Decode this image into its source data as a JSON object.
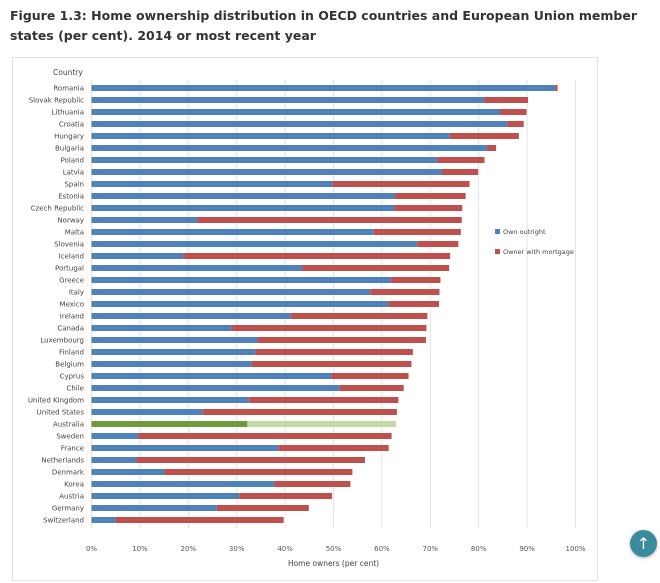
{
  "page": {
    "title": "Figure 1.3: Home ownership distribution in OECD countries and European Union member states (per cent). 2014 or most recent year",
    "scroll_top_icon": "arrow-up-icon"
  },
  "chart_data": {
    "type": "bar",
    "orientation": "horizontal",
    "stacked": true,
    "title": "Figure 1.3: Home ownership distribution in OECD countries and European Union member states (per cent). 2014 or most recent year",
    "ylabel": "Country",
    "xlabel": "Home owners (per cent)",
    "xlim": [
      0,
      100
    ],
    "xticks": [
      "0%",
      "10%",
      "20%",
      "30%",
      "40%",
      "50%",
      "60%",
      "70%",
      "80%",
      "90%",
      "100%"
    ],
    "grid": true,
    "legend_position": "right",
    "categories": [
      "Romania",
      "Slovak Republic",
      "Lithuania",
      "Croatia",
      "Hungary",
      "Bulgaria",
      "Poland",
      "Latvia",
      "Spain",
      "Estonia",
      "Czech Republic",
      "Norway",
      "Malta",
      "Slovenia",
      "Iceland",
      "Portugal",
      "Greece",
      "Italy",
      "Mexico",
      "Ireland",
      "Canada",
      "Luxembourg",
      "Finland",
      "Belgium",
      "Cyprus",
      "Chile",
      "United Kingdom",
      "United States",
      "Australia",
      "Sweden",
      "France",
      "Netherlands",
      "Denmark",
      "Korea",
      "Austria",
      "Germany",
      "Switzerland"
    ],
    "highlight": "Australia",
    "colors": {
      "outright": "#4f81bd",
      "mortgage": "#c0504d",
      "highlight_outright": "#6e9a3c",
      "highlight_mortgage": "#c4d9a6"
    },
    "series": [
      {
        "name": "Own outright",
        "values": [
          95.8,
          81.1,
          84.4,
          85.9,
          74.0,
          81.7,
          71.4,
          72.4,
          49.8,
          62.7,
          62.6,
          21.9,
          58.3,
          67.3,
          19.0,
          43.5,
          61.9,
          57.6,
          61.3,
          41.2,
          28.9,
          34.3,
          33.9,
          33.1,
          49.6,
          51.2,
          32.5,
          22.9,
          32.2,
          9.7,
          38.6,
          9.3,
          15.0,
          37.8,
          30.5,
          25.9,
          4.9
        ]
      },
      {
        "name": "Owner with mortgage",
        "values": [
          0.5,
          9.1,
          5.5,
          3.4,
          14.3,
          1.9,
          9.8,
          7.5,
          28.3,
          14.6,
          14.0,
          54.6,
          18.0,
          8.5,
          55.1,
          30.4,
          10.2,
          14.3,
          10.5,
          28.2,
          40.3,
          34.8,
          32.5,
          33.0,
          15.9,
          13.3,
          30.9,
          40.2,
          30.7,
          52.3,
          22.8,
          47.2,
          38.9,
          15.7,
          19.2,
          19.0,
          34.8
        ]
      }
    ]
  }
}
